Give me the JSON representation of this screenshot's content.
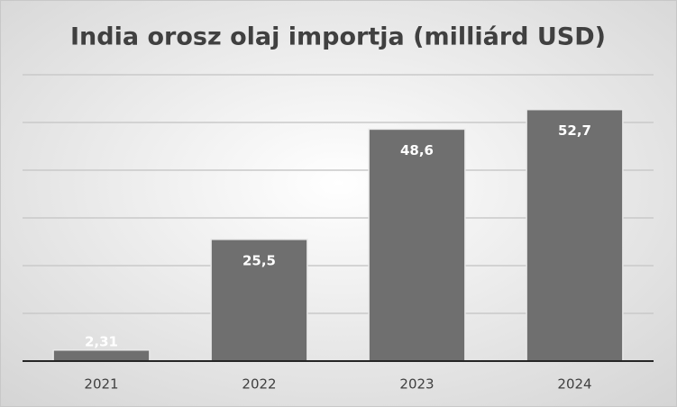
{
  "chart_data": {
    "type": "bar",
    "title": "India orosz olaj importja (milliárd USD)",
    "categories": [
      "2021",
      "2022",
      "2023",
      "2024"
    ],
    "values": [
      2.31,
      25.5,
      48.6,
      52.7
    ],
    "value_labels": [
      "2,31",
      "25,5",
      "48,6",
      "52,7"
    ],
    "color": "#6f6f6f",
    "ylim": [
      0,
      60
    ],
    "yticks": [
      0,
      10,
      20,
      30,
      40,
      50,
      60
    ],
    "grid": true
  }
}
